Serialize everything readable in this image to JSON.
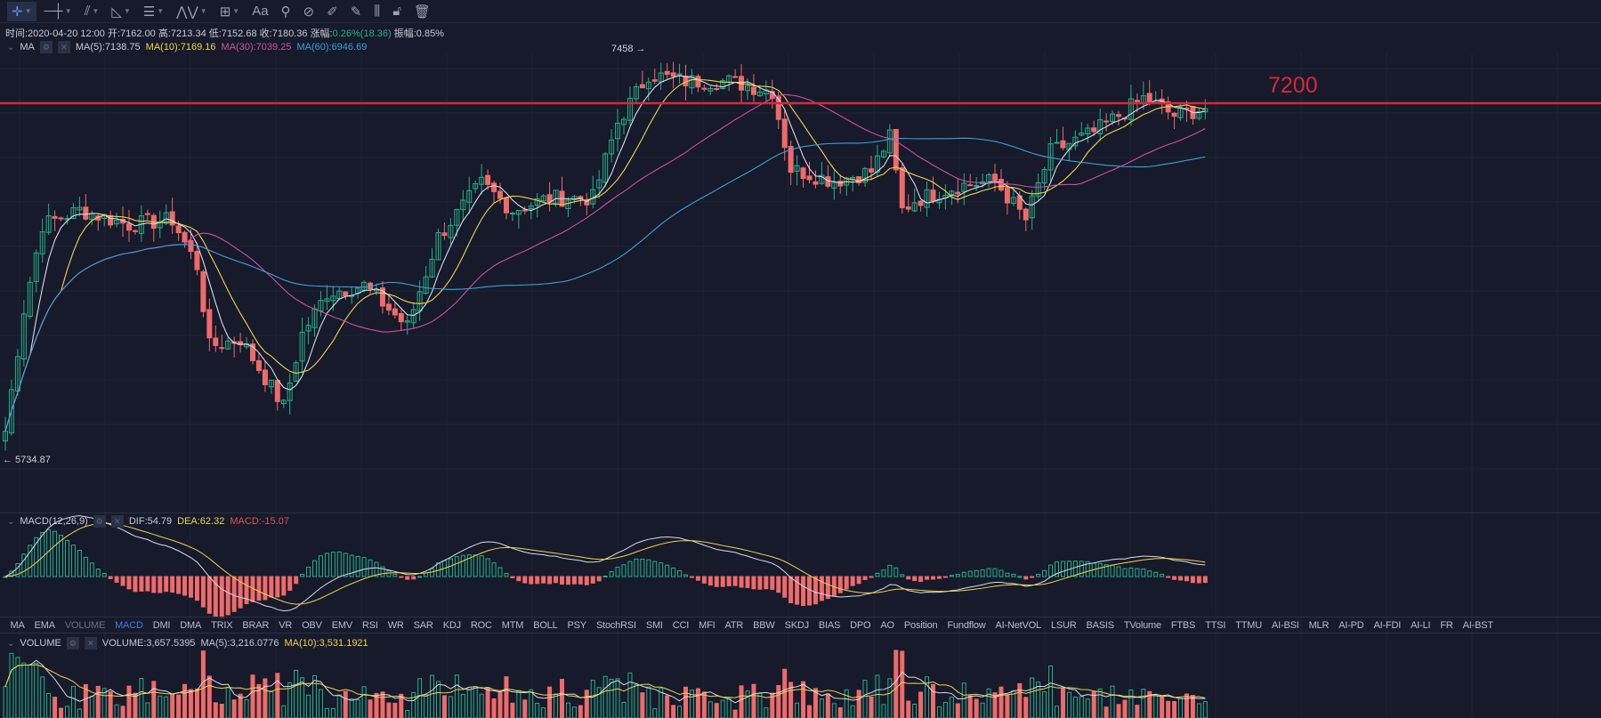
{
  "toolbar": {
    "items": [
      {
        "icon": "crosshair-icon",
        "glyph": "✛",
        "caret": true
      },
      {
        "icon": "horizontal-line-icon",
        "glyph": "─┼",
        "caret": true
      },
      {
        "icon": "trend-line-icon",
        "glyph": "⫽",
        "caret": true
      },
      {
        "icon": "angle-icon",
        "glyph": "◺",
        "caret": true
      },
      {
        "icon": "parallel-lines-icon",
        "glyph": "☰",
        "caret": true
      },
      {
        "icon": "wave-icon",
        "glyph": "⋀⋁",
        "caret": true
      },
      {
        "icon": "rectangle-icon",
        "glyph": "⊞",
        "caret": true
      },
      {
        "icon": "text-icon",
        "glyph": "Aa",
        "caret": false
      },
      {
        "icon": "measure-icon",
        "glyph": "⚲",
        "caret": false
      },
      {
        "icon": "magnet-icon",
        "glyph": "⊘",
        "caret": false
      },
      {
        "icon": "ruler-icon",
        "glyph": "✐",
        "caret": false
      },
      {
        "icon": "brush-icon",
        "glyph": "✎",
        "caret": false
      },
      {
        "icon": "visibility-icon",
        "glyph": "⫼",
        "caret": false
      },
      {
        "icon": "lock-icon",
        "glyph": "🔓︎",
        "caret": false
      },
      {
        "icon": "trash-icon",
        "glyph": "🗑︎",
        "caret": false
      }
    ]
  },
  "info": {
    "time": "时间:2020-04-20 12:00",
    "open": "开:7162.00",
    "high": "高:7213.34",
    "low": "低:7152.68",
    "close": "收:7180.36",
    "change_label": "涨幅:",
    "change_value": "0.26%(18.36)",
    "amp": "振幅:0.85%"
  },
  "ma_legend": {
    "name": "MA",
    "ma5": "MA(5):7138.75",
    "ma10": "MA(10):7169.16",
    "ma30": "MA(30):7039.25",
    "ma60": "MA(60):6946.69"
  },
  "macd_legend": {
    "name": "MACD(12,26,9)",
    "dif": "DIF:54.79",
    "dea": "DEA:62.32",
    "macd": "MACD:-15.07"
  },
  "volume_legend": {
    "name": "VOLUME",
    "vol": "VOLUME:3,657.5395",
    "ma5": "MA(5):3,216.0776",
    "ma10": "MA(10):3,531.1921"
  },
  "annotations": {
    "level_label": "7200",
    "high_label": "7458 →",
    "low_label": "← 5734.87"
  },
  "tabs": [
    "MA",
    "EMA",
    "VOLUME",
    "MACD",
    "DMI",
    "DMA",
    "TRIX",
    "BRAR",
    "VR",
    "OBV",
    "EMV",
    "RSI",
    "WR",
    "SAR",
    "KDJ",
    "ROC",
    "MTM",
    "BOLL",
    "PSY",
    "StochRSI",
    "SMI",
    "CCI",
    "MFI",
    "ATR",
    "BBW",
    "SKDJ",
    "BIAS",
    "DPO",
    "AO",
    "Position",
    "Fundflow",
    "AI-NetVOL",
    "LSUR",
    "BASIS",
    "TVolume",
    "FTBS",
    "TTSI",
    "TTMU",
    "AI-BSI",
    "MLR",
    "AI-PD",
    "AI-FDI",
    "AI-LI",
    "FR",
    "AI-BST"
  ],
  "colors": {
    "up": "#26b08a",
    "down": "#ef6a6a",
    "level": "#d8283a",
    "ma5": "#d9dbe6",
    "ma10": "#f1d54a",
    "ma30": "#cf4fa1",
    "ma60": "#3f9fd8",
    "bg": "#161a2b"
  },
  "chart_data": {
    "type": "candlestick",
    "level": 7200,
    "high": 7458,
    "low": 5734.87,
    "keypoints": [
      [
        0,
        5850
      ],
      [
        3,
        6350
      ],
      [
        6,
        6700
      ],
      [
        12,
        6760
      ],
      [
        20,
        6700
      ],
      [
        27,
        6720
      ],
      [
        31,
        6530
      ],
      [
        33,
        6200
      ],
      [
        38,
        6230
      ],
      [
        45,
        5950
      ],
      [
        48,
        6250
      ],
      [
        52,
        6420
      ],
      [
        58,
        6450
      ],
      [
        65,
        6280
      ],
      [
        70,
        6650
      ],
      [
        77,
        6870
      ],
      [
        82,
        6760
      ],
      [
        88,
        6810
      ],
      [
        95,
        6810
      ],
      [
        99,
        7120
      ],
      [
        104,
        7320
      ],
      [
        110,
        7290
      ],
      [
        117,
        7290
      ],
      [
        124,
        7250
      ],
      [
        127,
        6930
      ],
      [
        134,
        6880
      ],
      [
        140,
        6920
      ],
      [
        143,
        7060
      ],
      [
        145,
        6760
      ],
      [
        147,
        6800
      ],
      [
        154,
        6860
      ],
      [
        160,
        6880
      ],
      [
        165,
        6720
      ],
      [
        169,
        7000
      ],
      [
        176,
        7080
      ],
      [
        184,
        7220
      ],
      [
        189,
        7150
      ],
      [
        194,
        7180
      ]
    ]
  }
}
